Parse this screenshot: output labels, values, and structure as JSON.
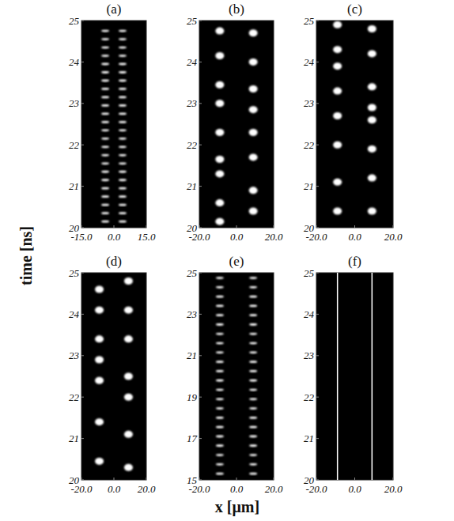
{
  "axis_labels": {
    "x": "x [μm]",
    "y": "time [ns]"
  },
  "chart_data": [
    {
      "type": "scatter",
      "title": "(a)",
      "marker": "stripe",
      "xlim": [
        -15,
        15
      ],
      "xticks": [
        {
          "value": -15,
          "label": "-15.0"
        },
        {
          "value": 0,
          "label": "0.0"
        },
        {
          "value": 15,
          "label": "15.0"
        }
      ],
      "ylim": [
        20,
        25
      ],
      "yticks": [
        20,
        21,
        22,
        23,
        24,
        25
      ],
      "series": [
        {
          "color": "#ffffff",
          "x": [
            -4,
            -4,
            -4,
            -4,
            -4,
            -4,
            -4,
            -4,
            -4,
            -4,
            -4,
            -4,
            -4,
            -4,
            -4,
            -4,
            -4,
            -4,
            -4,
            -4,
            -4,
            -4,
            -4,
            -4
          ],
          "values": [
            20.15,
            20.35,
            20.55,
            20.75,
            20.95,
            21.15,
            21.35,
            21.55,
            21.75,
            21.95,
            22.15,
            22.35,
            22.55,
            22.75,
            22.95,
            23.15,
            23.35,
            23.55,
            23.75,
            23.95,
            24.15,
            24.35,
            24.55,
            24.75
          ]
        },
        {
          "color": "#ffffff",
          "x": [
            4,
            4,
            4,
            4,
            4,
            4,
            4,
            4,
            4,
            4,
            4,
            4,
            4,
            4,
            4,
            4,
            4,
            4,
            4,
            4,
            4,
            4,
            4,
            4
          ],
          "values": [
            20.15,
            20.35,
            20.55,
            20.75,
            20.95,
            21.15,
            21.35,
            21.55,
            21.75,
            21.95,
            22.15,
            22.35,
            22.55,
            22.75,
            22.95,
            23.15,
            23.35,
            23.55,
            23.75,
            23.95,
            24.15,
            24.35,
            24.55,
            24.75
          ]
        }
      ]
    },
    {
      "type": "scatter",
      "title": "(b)",
      "marker": "dot",
      "xlim": [
        -20,
        20
      ],
      "xticks": [
        {
          "value": -20,
          "label": "-20.0"
        },
        {
          "value": 0,
          "label": "0.0"
        },
        {
          "value": 20,
          "label": "20.0"
        }
      ],
      "ylim": [
        20,
        25
      ],
      "yticks": [
        20,
        21,
        22,
        23,
        24,
        25
      ],
      "series": [
        {
          "color": "#ffffff",
          "x": [
            -9,
            -9,
            -9,
            -9,
            -9,
            -9,
            -9,
            -9,
            -9
          ],
          "values": [
            20.15,
            20.6,
            21.3,
            21.65,
            22.3,
            23.0,
            23.45,
            24.15,
            24.75
          ]
        },
        {
          "color": "#ffffff",
          "x": [
            9,
            9,
            9,
            9,
            9,
            9,
            9,
            9
          ],
          "values": [
            20.4,
            20.9,
            21.7,
            22.3,
            22.85,
            23.35,
            24.0,
            24.7
          ]
        }
      ]
    },
    {
      "type": "scatter",
      "title": "(c)",
      "marker": "dot",
      "xlim": [
        -20,
        20
      ],
      "xticks": [
        {
          "value": -20,
          "label": "-20.0"
        },
        {
          "value": 0,
          "label": "0.0"
        },
        {
          "value": 20,
          "label": "20.0"
        }
      ],
      "ylim": [
        20,
        25
      ],
      "yticks": [
        20,
        21,
        22,
        23,
        24,
        25
      ],
      "series": [
        {
          "color": "#ffffff",
          "x": [
            -9,
            -9,
            -9,
            -9,
            -9,
            -9,
            -9,
            -9
          ],
          "values": [
            20.4,
            21.1,
            22.0,
            22.7,
            23.3,
            23.9,
            24.3,
            24.9
          ]
        },
        {
          "color": "#ffffff",
          "x": [
            9,
            9,
            9,
            9,
            9,
            9,
            9,
            9
          ],
          "values": [
            20.4,
            21.2,
            21.9,
            22.6,
            22.9,
            23.4,
            24.2,
            24.8
          ]
        }
      ]
    },
    {
      "type": "scatter",
      "title": "(d)",
      "marker": "dot",
      "xlim": [
        -20,
        20
      ],
      "xticks": [
        {
          "value": -20,
          "label": "-20.0"
        },
        {
          "value": 0,
          "label": "0.0"
        },
        {
          "value": 20,
          "label": "20.0"
        }
      ],
      "ylim": [
        20,
        25
      ],
      "yticks": [
        20,
        21,
        22,
        23,
        24,
        25
      ],
      "series": [
        {
          "color": "#ffffff",
          "x": [
            -9,
            -9,
            -9,
            -9,
            -9,
            -9,
            -9
          ],
          "values": [
            20.45,
            21.4,
            22.4,
            22.9,
            23.4,
            24.1,
            24.6
          ]
        },
        {
          "color": "#ffffff",
          "x": [
            9,
            9,
            9,
            9,
            9,
            9,
            9
          ],
          "values": [
            20.3,
            21.1,
            22.0,
            22.5,
            23.4,
            24.1,
            24.8
          ]
        }
      ]
    },
    {
      "type": "scatter",
      "title": "(e)",
      "marker": "stripe",
      "xlim": [
        -20,
        20
      ],
      "xticks": [
        {
          "value": -20,
          "label": "-20.0"
        },
        {
          "value": 0,
          "label": "0.0"
        },
        {
          "value": 20,
          "label": "20.0"
        }
      ],
      "ylim": [
        15,
        25
      ],
      "yticks": [
        15,
        17,
        19,
        21,
        23,
        25
      ],
      "series": [
        {
          "color": "#ffffff",
          "x": [
            -9,
            -9,
            -9,
            -9,
            -9,
            -9,
            -9,
            -9,
            -9,
            -9,
            -9,
            -9,
            -9,
            -9,
            -9,
            -9,
            -9,
            -9,
            -9,
            -9,
            -9,
            -9
          ],
          "values": [
            15.3,
            15.75,
            16.2,
            16.65,
            17.1,
            17.55,
            18.0,
            18.45,
            18.9,
            19.35,
            19.8,
            20.25,
            20.7,
            21.15,
            21.6,
            22.05,
            22.5,
            22.95,
            23.4,
            23.85,
            24.3,
            24.75
          ]
        },
        {
          "color": "#ffffff",
          "x": [
            9,
            9,
            9,
            9,
            9,
            9,
            9,
            9,
            9,
            9,
            9,
            9,
            9,
            9,
            9,
            9,
            9,
            9,
            9,
            9,
            9,
            9
          ],
          "values": [
            15.3,
            15.75,
            16.2,
            16.65,
            17.1,
            17.55,
            18.0,
            18.45,
            18.9,
            19.35,
            19.8,
            20.25,
            20.7,
            21.15,
            21.6,
            22.05,
            22.5,
            22.95,
            23.4,
            23.85,
            24.3,
            24.75
          ]
        }
      ]
    },
    {
      "type": "line",
      "title": "(f)",
      "xlim": [
        -20,
        20
      ],
      "xticks": [
        {
          "value": -20,
          "label": "-20.0"
        },
        {
          "value": 0,
          "label": "0.0"
        },
        {
          "value": 20,
          "label": "20.0"
        }
      ],
      "ylim": [
        20,
        25
      ],
      "yticks": [
        20,
        21,
        22,
        23,
        24,
        25
      ],
      "series": [
        {
          "color": "#ffffff",
          "x": [
            -9,
            -9
          ],
          "values": [
            20,
            25
          ]
        },
        {
          "color": "#ffffff",
          "x": [
            9,
            9
          ],
          "values": [
            20,
            25
          ]
        }
      ]
    }
  ]
}
